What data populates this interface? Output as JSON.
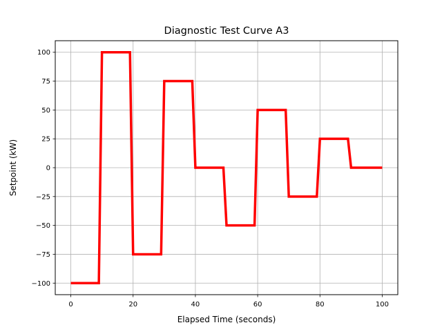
{
  "chart_data": {
    "type": "line",
    "title": "Diagnostic Test Curve A3",
    "xlabel": "Elapsed Time (seconds)",
    "ylabel": "Setpoint (kW)",
    "xlim": [
      -5,
      105
    ],
    "ylim": [
      -110,
      110
    ],
    "xticks": [
      0,
      20,
      40,
      60,
      80,
      100
    ],
    "yticks": [
      -100,
      -75,
      -50,
      -25,
      0,
      25,
      50,
      75,
      100
    ],
    "ytick_labels": [
      "−100",
      "−75",
      "−50",
      "−25",
      "0",
      "25",
      "50",
      "75",
      "100"
    ],
    "grid": true,
    "series": [
      {
        "color": "#ff0000",
        "x": [
          0,
          9,
          10,
          19,
          20,
          29,
          30,
          39,
          40,
          49,
          50,
          59,
          60,
          69,
          70,
          79,
          80,
          89,
          90,
          100
        ],
        "y": [
          -100,
          -100,
          100,
          100,
          -75,
          -75,
          75,
          75,
          0,
          0,
          -50,
          -50,
          50,
          50,
          -25,
          -25,
          25,
          25,
          0,
          0
        ]
      }
    ]
  }
}
